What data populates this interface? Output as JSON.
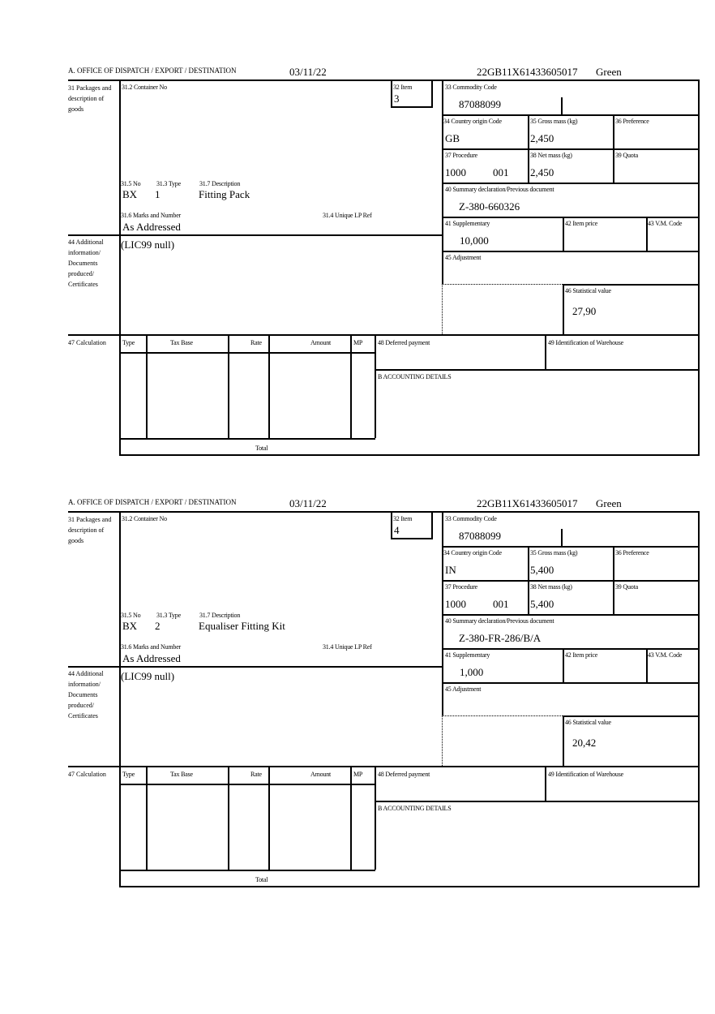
{
  "labels": {
    "office": "A.  OFFICE OF DISPATCH / EXPORT / DESTINATION",
    "packages": "31 Packages and description of goods",
    "container": "31.2 Container No",
    "item": "32 Item",
    "no": "31.5 No",
    "type": "31.3 Type",
    "description": "31.7 Description",
    "marks": "31.6 Marks and Number",
    "unique_lp": "31.4 Unique LP Ref",
    "commodity": "33 Commodity Code",
    "country": "34 Country origin Code",
    "gross": "35 Gross mass (kg)",
    "preference": "36 Preference",
    "procedure": "37 Procedure",
    "net": "38 Net mass (kg)",
    "quota": "39 Quota",
    "summary": "40 Summary declaration/Previous document",
    "supplementary": "41 Supplementary",
    "item_price": "42 Item price",
    "vm_code": "43 V.M. Code",
    "adjustment": "45 Adjustment",
    "statistical": "46 Statistical value",
    "additional": "44 Additional information/ Documents produced/ Certificates",
    "calculation": "47 Calculation",
    "calc_type": "Type",
    "calc_tax_base": "Tax Base",
    "calc_rate": "Rate",
    "calc_amount": "Amount",
    "calc_mp": "MP",
    "total": "Total",
    "deferred": "48 Deferred payment",
    "warehouse": "49 Identification of Warehouse",
    "accounting": "B ACCOUNTING DETAILS"
  },
  "items": [
    {
      "date": "03/11/22",
      "reference": "22GB11X61433605017",
      "route": "Green",
      "item_no": "3",
      "pkg_kind": "BX",
      "pkg_count": "1",
      "description": "Fitting Pack",
      "marks": "As Addressed",
      "commodity_code": "87088099",
      "country": "GB",
      "gross_mass": "2,450",
      "procedure": "1000",
      "procedure_add": "001",
      "net_mass": "2,450",
      "summary_doc": "Z-380-660326",
      "supplementary": "10,000",
      "additional_info": "(LIC99 null)",
      "statistical_value": "27,90"
    },
    {
      "date": "03/11/22",
      "reference": "22GB11X61433605017",
      "route": "Green",
      "item_no": "4",
      "pkg_kind": "BX",
      "pkg_count": "2",
      "description": "Equaliser Fitting Kit",
      "marks": "As Addressed",
      "commodity_code": "87088099",
      "country": "IN",
      "gross_mass": "5,400",
      "procedure": "1000",
      "procedure_add": "001",
      "net_mass": "5,400",
      "summary_doc": "Z-380-FR-286/B/A",
      "supplementary": "1,000",
      "additional_info": "(LIC99 null)",
      "statistical_value": "20,42"
    }
  ]
}
